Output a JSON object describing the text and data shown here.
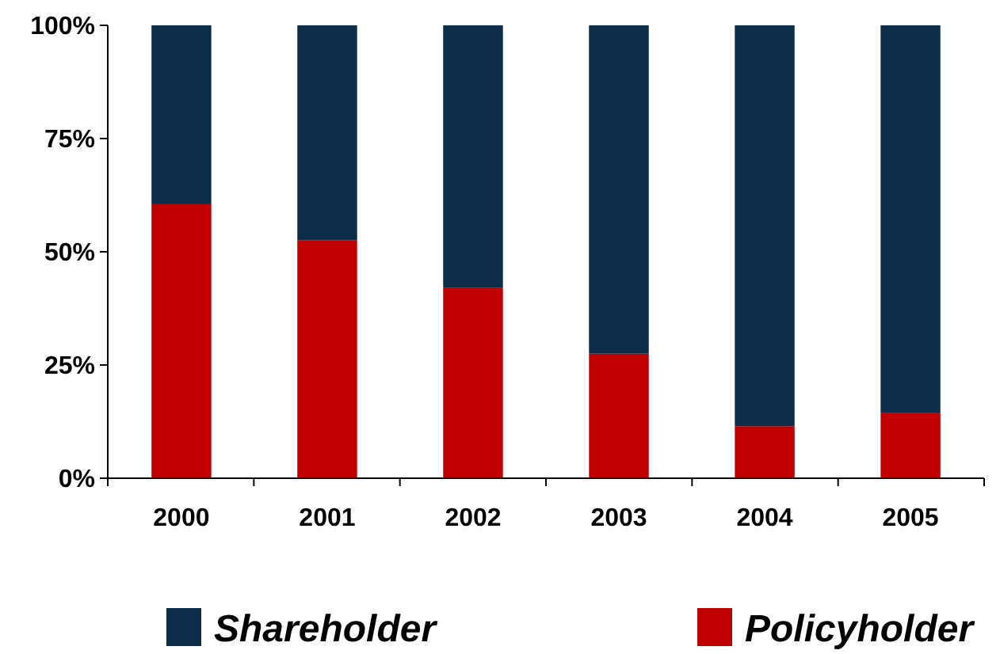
{
  "chart_data": {
    "type": "bar",
    "stacked": true,
    "categories": [
      "2000",
      "2001",
      "2002",
      "2003",
      "2004",
      "2005"
    ],
    "series": [
      {
        "name": "Policyholder",
        "color": "#c00000",
        "values": [
          60.5,
          52.5,
          42,
          27.5,
          11.5,
          14.5
        ]
      },
      {
        "name": "Shareholder",
        "color": "#0b2d4a",
        "values": [
          39.5,
          47.5,
          58,
          72.5,
          88.5,
          85.5
        ]
      }
    ],
    "ylim": [
      0,
      100
    ],
    "yticks": [
      {
        "value": 0,
        "label": "0%"
      },
      {
        "value": 25,
        "label": "25%"
      },
      {
        "value": 50,
        "label": "50%"
      },
      {
        "value": 75,
        "label": "75%"
      },
      {
        "value": 100,
        "label": "100%"
      }
    ],
    "legend": "bottom",
    "grid": false
  }
}
